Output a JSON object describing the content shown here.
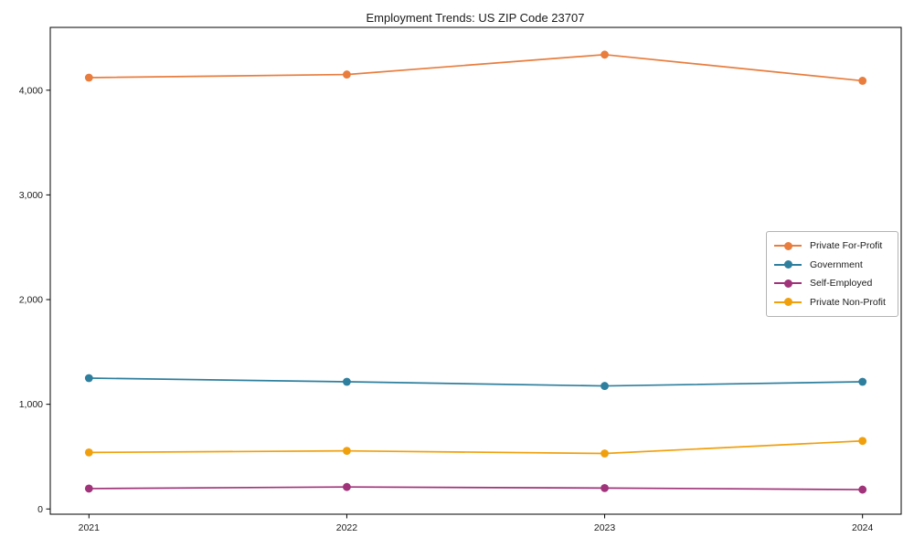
{
  "chart_data": {
    "type": "line",
    "title": "Employment Trends: US ZIP Code 23707",
    "categories": [
      "2021",
      "2022",
      "2023",
      "2024"
    ],
    "series": [
      {
        "name": "Private For-Profit",
        "color": "#e87d3e",
        "values": [
          4120,
          4150,
          4340,
          4090
        ]
      },
      {
        "name": "Government",
        "color": "#2e7f9e",
        "values": [
          1250,
          1215,
          1175,
          1215
        ]
      },
      {
        "name": "Self-Employed",
        "color": "#a0337a",
        "values": [
          195,
          210,
          200,
          185
        ]
      },
      {
        "name": "Private Non-Profit",
        "color": "#f0a00d",
        "values": [
          540,
          555,
          530,
          650
        ]
      }
    ],
    "xlabel": "",
    "ylabel": "",
    "yticks": [
      0,
      1000,
      2000,
      3000,
      4000
    ],
    "ytick_labels": [
      "0",
      "1,000",
      "2,000",
      "3,000",
      "4,000"
    ],
    "ylim": [
      -50,
      4600
    ],
    "xlim": [
      -0.15,
      3.15
    ],
    "grid": false,
    "legend_position": "center-right",
    "marker": "circle",
    "axis_color": "#000000",
    "legend_border_color": "#b3b3b3"
  }
}
